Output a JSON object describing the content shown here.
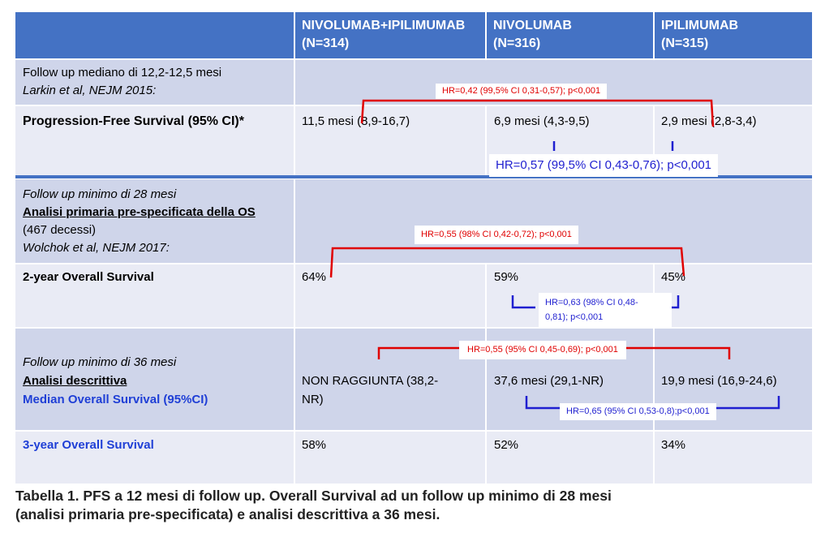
{
  "header": {
    "col1": {
      "name": "NIVOLUMAB+IPILIMUMAB",
      "n": "(N=314)"
    },
    "col2": {
      "name": "NIVOLUMAB",
      "n": "(N=316)"
    },
    "col3": {
      "name": "IPILIMUMAB",
      "n": "(N=315)"
    }
  },
  "section1": {
    "followup": "Follow up mediano di 12,2-12,5 mesi",
    "reference": "Larkin et al, NEJM 2015:",
    "row_label": "Progression-Free Survival (95% CI)*",
    "values": [
      "11,5 mesi (8,9-16,7)",
      "6,9 mesi (4,3-9,5)",
      "2,9 mesi (2,8-3,4)"
    ],
    "hr_red": "HR=0,42 (99,5% CI 0,31-0,57); p<0,001",
    "hr_blue": "HR=0,57 (99,5% CI 0,43-0,76); p<0,001"
  },
  "section2": {
    "followup": "Follow up minimo di 28 mesi",
    "analysis": "Analisi primaria pre-specificata della OS",
    "deaths": "(467 decessi)",
    "reference": "Wolchok et al, NEJM 2017:",
    "row_label": "2-year Overall Survival",
    "values": [
      "64%",
      "59%",
      "45%"
    ],
    "hr_red": "HR=0,55 (98% CI 0,42-0,72); p<0,001",
    "hr_blue_line1": "HR=0,63 (98% CI 0,48-",
    "hr_blue_line2": "0,81); p<0,001"
  },
  "section3": {
    "followup": "Follow up minimo di 36 mesi",
    "analysis": "Analisi descrittiva",
    "row_label": "Median Overall Survival (95%CI)",
    "values_line1": [
      "NON RAGGIUNTA (38,2-",
      "37,6 mesi (29,1-NR)",
      "19,9 mesi (16,9-24,6)"
    ],
    "value1_line2": "NR)",
    "hr_red": "HR=0,55 (95% CI 0,45-0,69); p<0,001",
    "hr_blue": "HR=0,65 (95% CI 0,53-0,8);p<0,001",
    "row2_label": "3-year Overall Survival",
    "row2_values": [
      "58%",
      "52%",
      "34%"
    ]
  },
  "caption_line1": "Tabella 1. PFS a 12 mesi di follow up. Overall Survival ad un follow up minimo di 28 mesi",
  "caption_line2": "(analisi primaria pre-specificata) e analisi descrittiva a 36 mesi.",
  "colors": {
    "header": "#4472C4",
    "dark_row": "#CFD5EA",
    "light_row": "#E9EBF5",
    "red": "#E00000",
    "blue": "#1F3FD6"
  }
}
